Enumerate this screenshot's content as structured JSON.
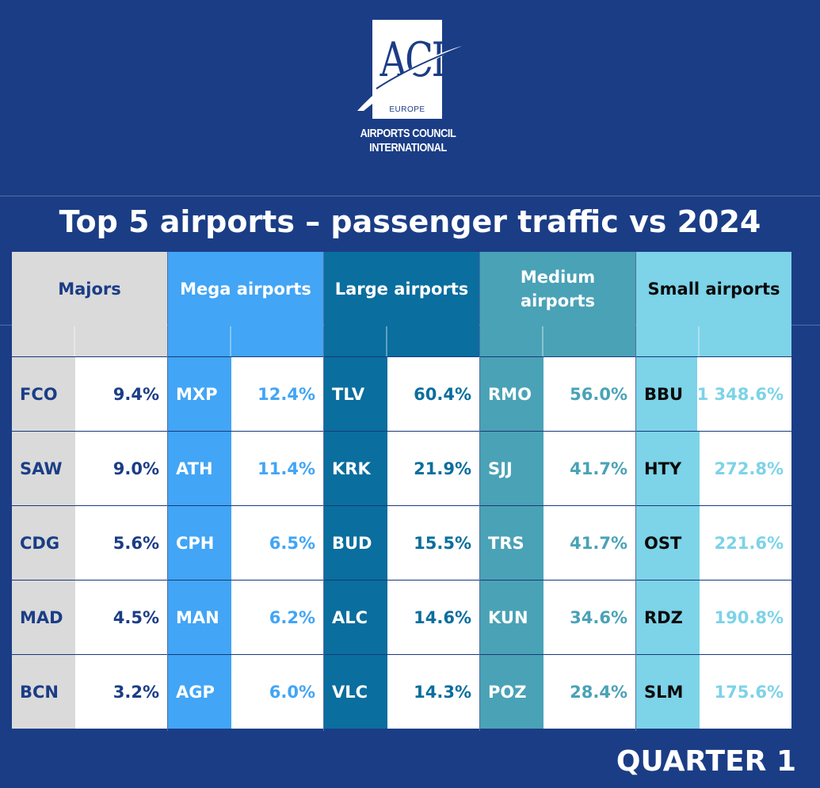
{
  "logo": {
    "mark": "ACI",
    "region": "EUROPE",
    "line1": "AIRPORTS COUNCIL",
    "line2": "INTERNATIONAL"
  },
  "title": "Top 5 airports – passenger traffic vs 2024",
  "footer": "QUARTER 1",
  "groups": [
    {
      "name": "Majors",
      "colors": {
        "header": "#dadada",
        "code": "#dadada",
        "header_text": "#1b3d86",
        "code_text": "#1b3d86",
        "value_text": "#1b3d86"
      },
      "rows": [
        {
          "code": "FCO",
          "value": "9.4%"
        },
        {
          "code": "SAW",
          "value": "9.0%"
        },
        {
          "code": "CDG",
          "value": "5.6%"
        },
        {
          "code": "MAD",
          "value": "4.5%"
        },
        {
          "code": "BCN",
          "value": "3.2%"
        }
      ]
    },
    {
      "name": "Mega airports",
      "colors": {
        "header": "#42a5f5",
        "code": "#42a5f5",
        "header_text": "#ffffff",
        "code_text": "#ffffff",
        "value_text": "#42a5f5"
      },
      "rows": [
        {
          "code": "MXP",
          "value": "12.4%"
        },
        {
          "code": "ATH",
          "value": "11.4%"
        },
        {
          "code": "CPH",
          "value": "6.5%"
        },
        {
          "code": "MAN",
          "value": "6.2%"
        },
        {
          "code": "AGP",
          "value": "6.0%"
        }
      ]
    },
    {
      "name": "Large airports",
      "colors": {
        "header": "#0a6e9e",
        "code": "#0a6e9e",
        "header_text": "#ffffff",
        "code_text": "#ffffff",
        "value_text": "#0a6e9e"
      },
      "rows": [
        {
          "code": "TLV",
          "value": "60.4%"
        },
        {
          "code": "KRK",
          "value": "21.9%"
        },
        {
          "code": "BUD",
          "value": "15.5%"
        },
        {
          "code": "ALC",
          "value": "14.6%"
        },
        {
          "code": "VLC",
          "value": "14.3%"
        }
      ]
    },
    {
      "name": "Medium\nairports",
      "colors": {
        "header": "#4aa2b6",
        "code": "#4aa2b6",
        "header_text": "#ffffff",
        "code_text": "#ffffff",
        "value_text": "#4aa2b6"
      },
      "rows": [
        {
          "code": "RMO",
          "value": "56.0%"
        },
        {
          "code": "SJJ",
          "value": "41.7%"
        },
        {
          "code": "TRS",
          "value": "41.7%"
        },
        {
          "code": "KUN",
          "value": "34.6%"
        },
        {
          "code": "POZ",
          "value": "28.4%"
        }
      ]
    },
    {
      "name": "Small airports",
      "colors": {
        "header": "#7dd3e8",
        "code": "#7dd3e8",
        "header_text": "#0b0b0b",
        "code_text": "#0b0b0b",
        "value_text": "#7dd3e8"
      },
      "rows": [
        {
          "code": "BBU",
          "value": "1 348.6%"
        },
        {
          "code": "HTY",
          "value": "272.8%"
        },
        {
          "code": "OST",
          "value": "221.6%"
        },
        {
          "code": "RDZ",
          "value": "190.8%"
        },
        {
          "code": "SLM",
          "value": "175.6%"
        }
      ]
    }
  ]
}
